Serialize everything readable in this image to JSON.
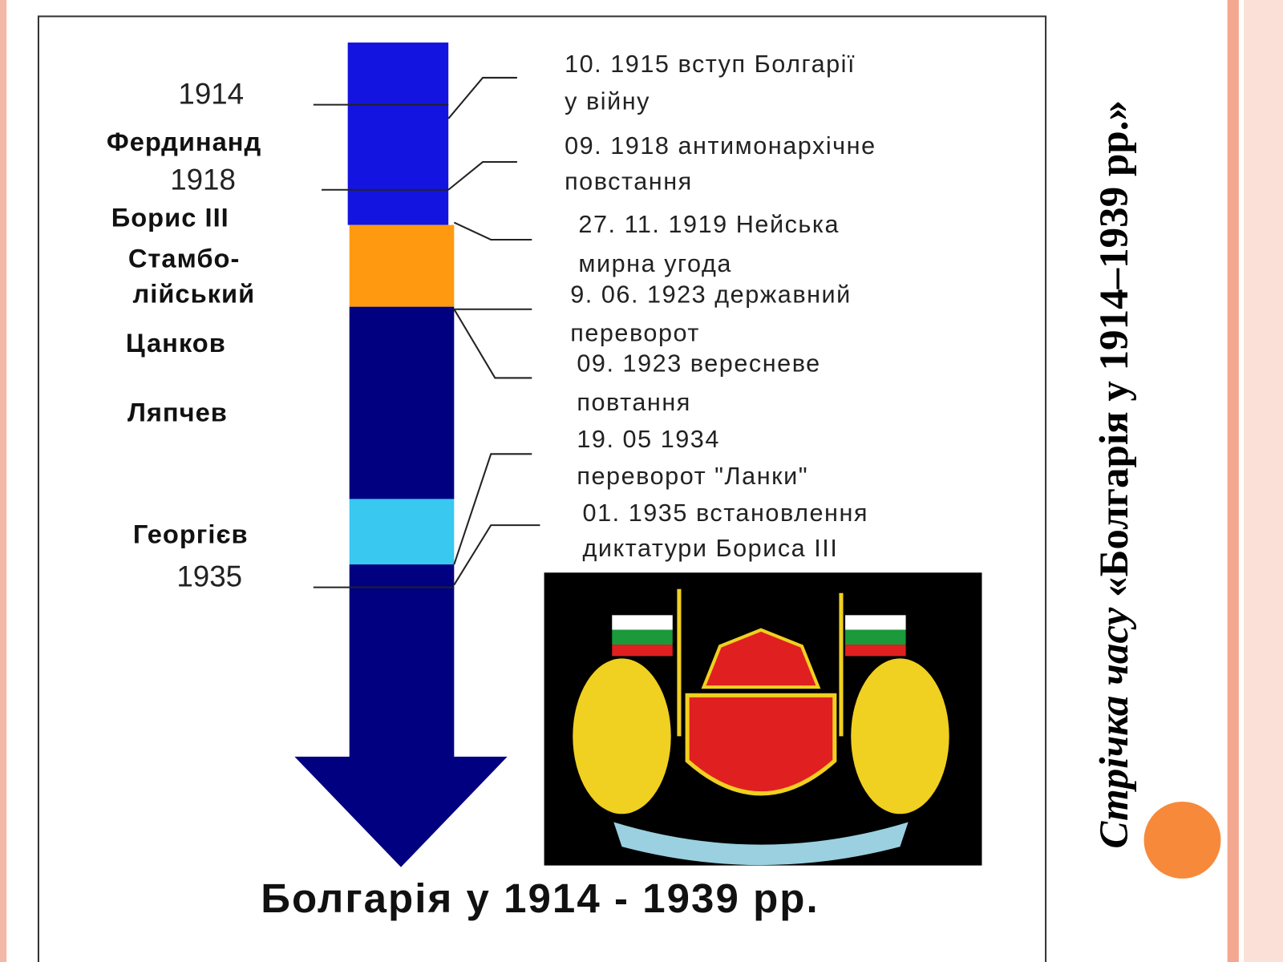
{
  "title": {
    "italic": "Стрічка часу",
    "main": "«Болгарія у 1914–1939 рр.»"
  },
  "timeline": {
    "left_labels": [
      "1914",
      "Фердинанд",
      "1918",
      "Борис III",
      "Стамбо-",
      "лійський",
      "Цанков",
      "Ляпчев",
      "Георгієв",
      "1935"
    ],
    "events": [
      [
        "10. 1915 вступ Болгарії",
        "у війну"
      ],
      [
        "09. 1918 антимонархічне",
        "повстання"
      ],
      [
        "27. 11. 1919 Нейська",
        "мирна угода"
      ],
      [
        "9. 06. 1923 державний",
        "переворот"
      ],
      [
        "09. 1923 вересневе",
        "повтання"
      ],
      [
        "19. 05 1934",
        "переворот \"Ланки\""
      ],
      [
        "01. 1935 встановлення",
        "диктатури Бориса III"
      ]
    ],
    "caption": "Болгарія у 1914 - 1939 рр."
  }
}
